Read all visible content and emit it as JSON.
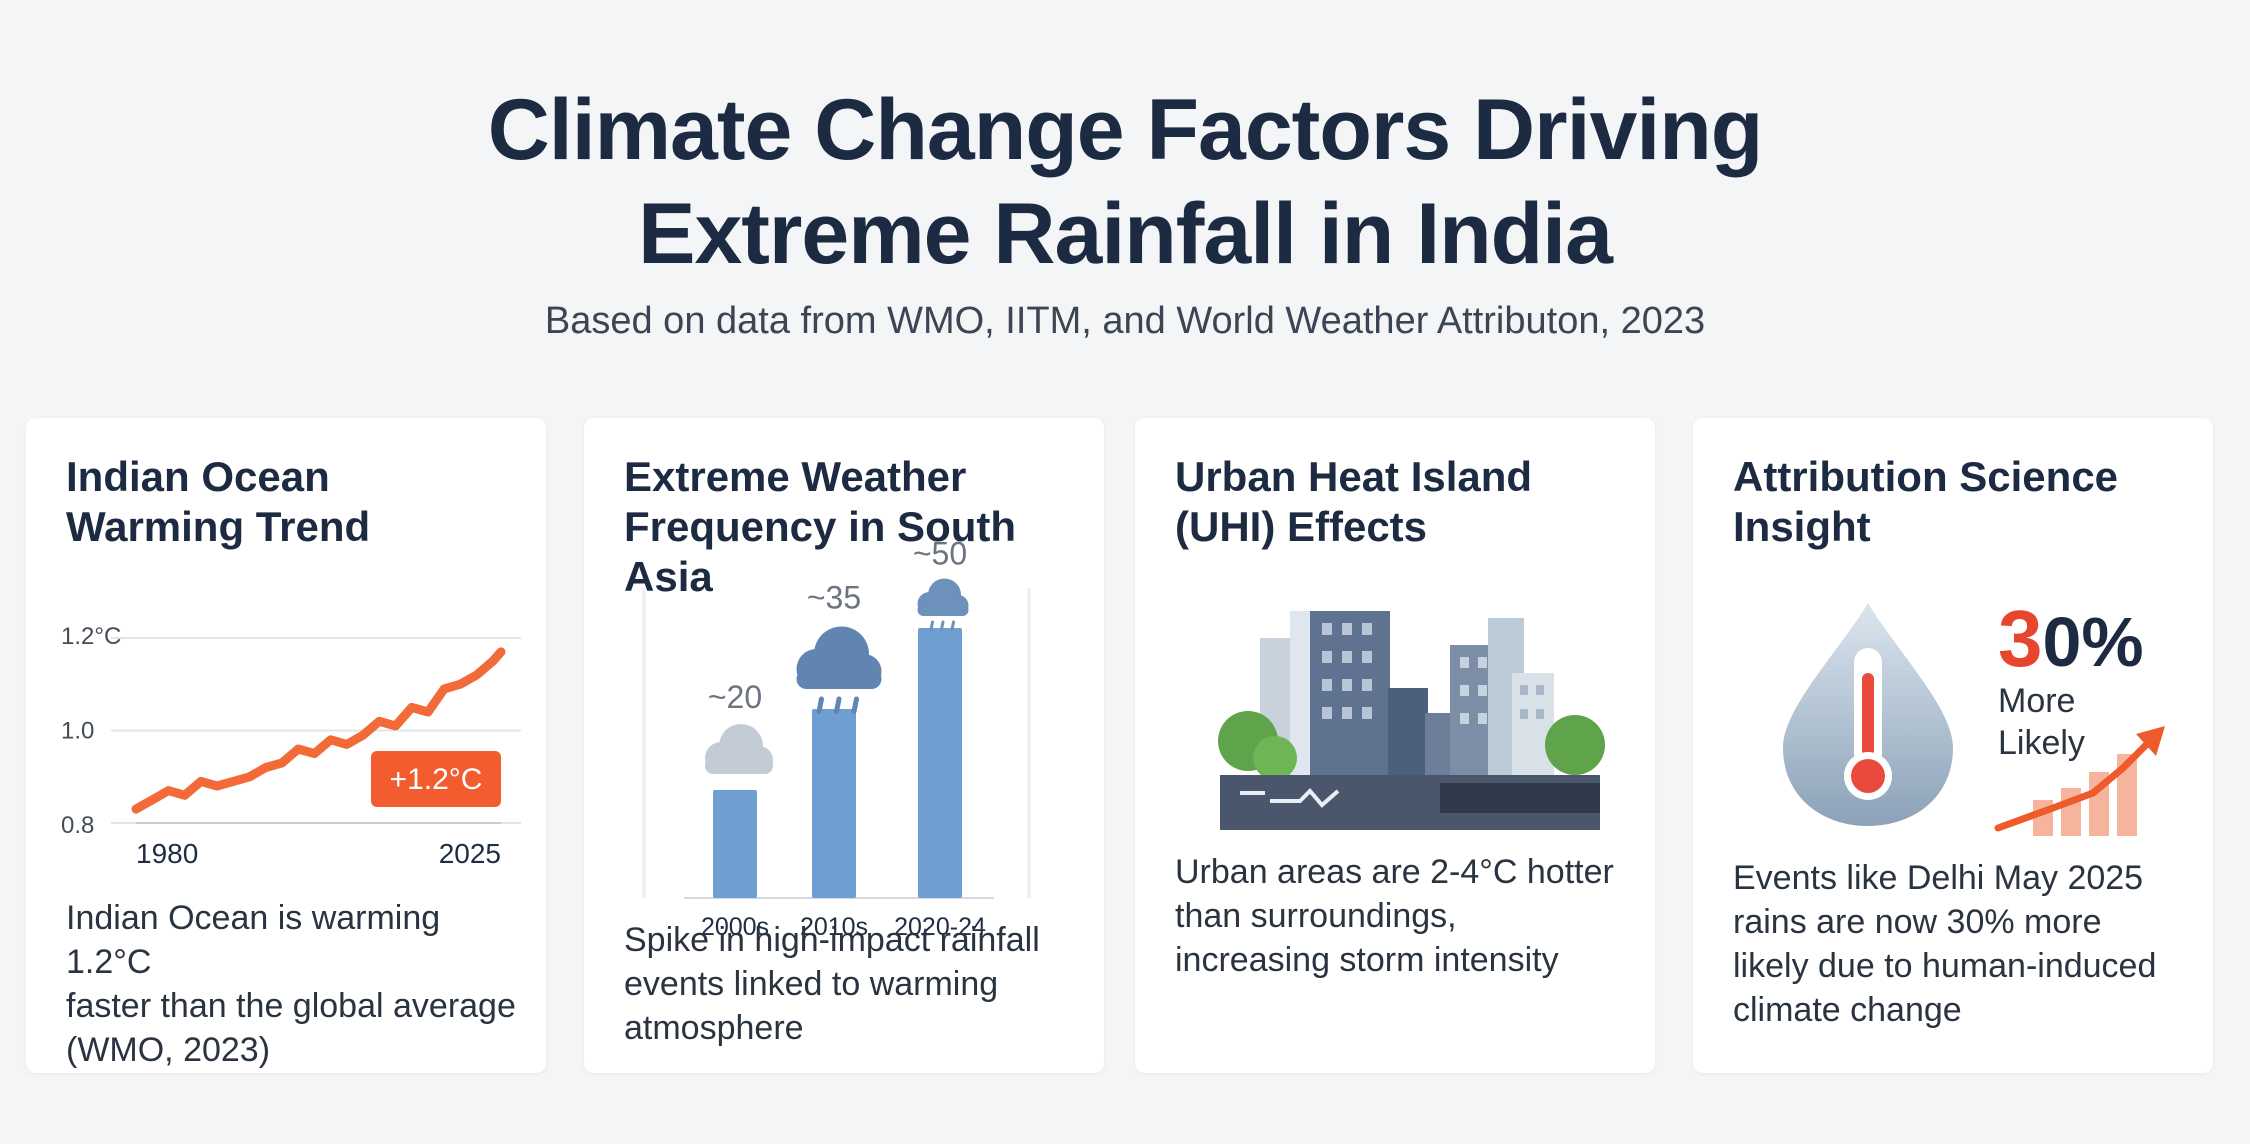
{
  "header": {
    "title_line1": "Climate Change Factors Driving",
    "title_line2": "Extreme Rainfall in India",
    "subtitle": "Based on data from WMO, IITM, and World Weather Attributon, 2023"
  },
  "cards": {
    "ocean": {
      "title_line1": "Indian Ocean",
      "title_line2": "Warming Trend",
      "desc_line1": "Indian Ocean is warming 1.2°C",
      "desc_line2": "faster than the global average",
      "desc_line3": "(WMO, 2023)"
    },
    "extreme": {
      "title_line1": "Extreme Weather",
      "title_line2": "Frequency in South Asia",
      "desc_line1": "Spike in high-impact rainfall",
      "desc_line2": "events linked to warming",
      "desc_line3": "atmosphere"
    },
    "uhi": {
      "title_line1": "Urban Heat Island",
      "title_line2": "(UHI) Effects",
      "desc_line1": "Urban areas are 2-4°C hotter",
      "desc_line2": "than surroundings,",
      "desc_line3": "increasing storm intensity"
    },
    "attribution": {
      "title_line1": "Attribution Science",
      "title_line2": "Insight",
      "percent_digit": "3",
      "percent_rest": "0%",
      "more_label": "More",
      "likely_label": "Likely",
      "desc_line1": "Events like Delhi May 2025",
      "desc_line2": "rains are now 30% more",
      "desc_line3": "likely due to human-induced",
      "desc_line4": "climate change"
    }
  },
  "chart_data": [
    {
      "type": "line",
      "x_tick_labels": [
        "1980",
        "2025"
      ],
      "y_tick_labels": [
        "1.2°C",
        "1.0",
        "0.8"
      ],
      "ylim": [
        0.8,
        1.2
      ],
      "xlim": [
        1980,
        2025
      ],
      "series": [
        {
          "x": [
            1980,
            1982,
            1984,
            1986,
            1988,
            1990,
            1992,
            1994,
            1996,
            1998,
            2000,
            2002,
            2004,
            2006,
            2008,
            2010,
            2012,
            2014,
            2016,
            2018,
            2020,
            2022,
            2024,
            2025
          ],
          "values": [
            0.83,
            0.85,
            0.87,
            0.86,
            0.89,
            0.88,
            0.89,
            0.9,
            0.92,
            0.93,
            0.96,
            0.95,
            0.98,
            0.97,
            0.99,
            1.02,
            1.01,
            1.05,
            1.04,
            1.09,
            1.1,
            1.12,
            1.15,
            1.17
          ]
        }
      ],
      "annotation": "+1.2°C",
      "grid": true,
      "colors": {
        "line": "#f26a37",
        "badge": "#f25c2e",
        "grid": "#e2e5ea"
      }
    },
    {
      "type": "bar",
      "categories": [
        "2000s",
        "2010s",
        "2020-24"
      ],
      "values": [
        20,
        35,
        50
      ],
      "data_labels": [
        "~20",
        "~35",
        "~50"
      ],
      "colors": {
        "bar": "#6f9fd1"
      }
    }
  ]
}
